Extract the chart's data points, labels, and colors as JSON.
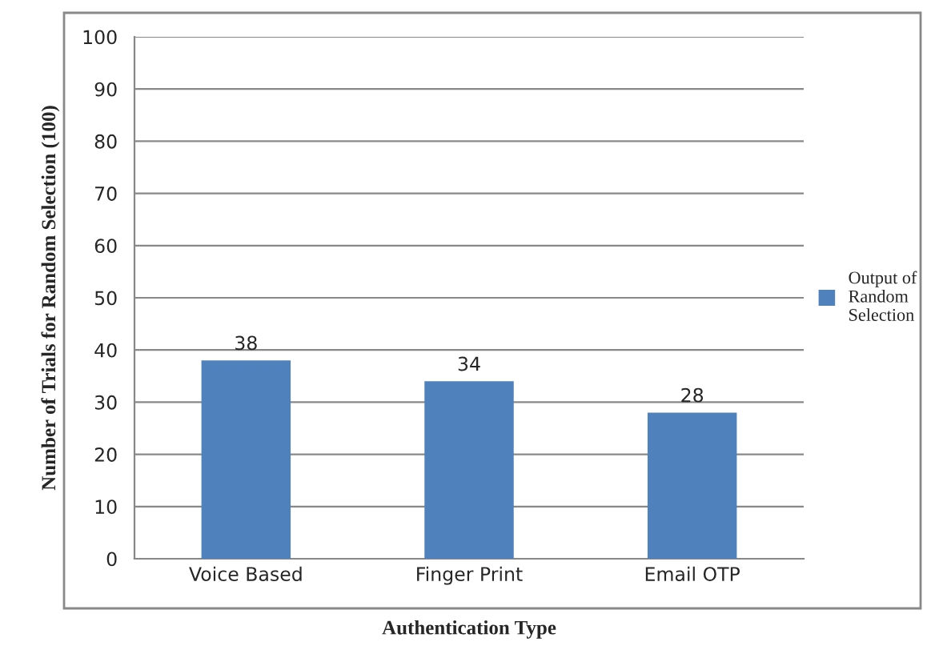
{
  "chart_data": {
    "type": "bar",
    "xlabel": "Authentication Type",
    "ylabel": "Number of Trials for Random Selection (100)",
    "categories": [
      "Voice Based",
      "Finger Print",
      "Email OTP"
    ],
    "series": [
      {
        "name": "Output of Random Selection",
        "color": "#4f81bd",
        "values": [
          38,
          34,
          28
        ]
      }
    ],
    "ylim": [
      0,
      100
    ],
    "yticks": [
      0,
      10,
      20,
      30,
      40,
      50,
      60,
      70,
      80,
      90,
      100
    ],
    "grid": "y",
    "legend": "right",
    "data_labels": true
  }
}
